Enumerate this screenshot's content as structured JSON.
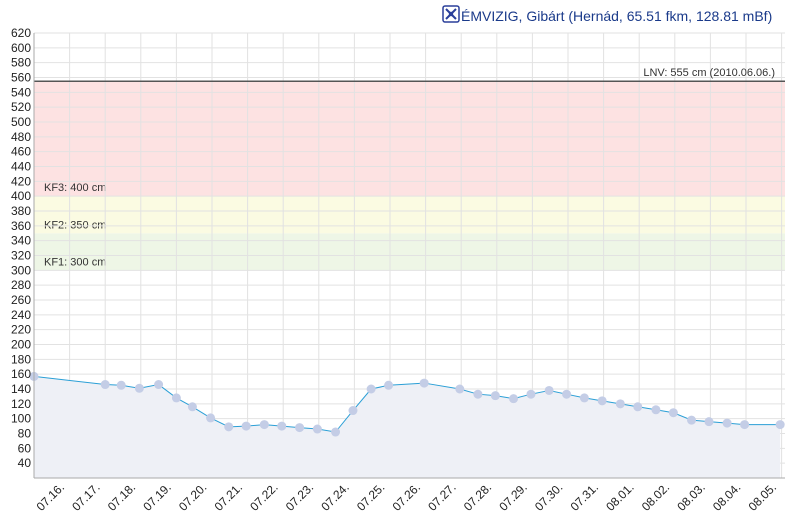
{
  "chart_data": {
    "type": "line",
    "title": "ÉMVIZIG, Gibárt (Hernád, 65.51 fkm, 128.81 mBf)",
    "title_icon": "station-logo-icon",
    "ylim": [
      20,
      620
    ],
    "y_ticks": [
      40,
      60,
      80,
      100,
      120,
      140,
      160,
      180,
      200,
      220,
      240,
      260,
      280,
      300,
      320,
      340,
      360,
      380,
      400,
      420,
      440,
      460,
      480,
      500,
      520,
      540,
      560,
      580,
      600,
      620
    ],
    "x_start_label": "07.16.",
    "x_tick_labels": [
      "07.16.",
      "07.17.",
      "07.18.",
      "07.19.",
      "07.20.",
      "07.21.",
      "07.22.",
      "07.23.",
      "07.24.",
      "07.25.",
      "07.26.",
      "07.27.",
      "07.28.",
      "07.29.",
      "07.30.",
      "07.31.",
      "08.01.",
      "08.02.",
      "08.03.",
      "08.04.",
      "08.05."
    ],
    "grid": true,
    "bands": [
      {
        "label": "KF1: 300 cm",
        "from": 300,
        "to": 350,
        "color": "#eef6e6"
      },
      {
        "label": "KF2: 350 cm",
        "from": 350,
        "to": 400,
        "color": "#fbfbe2"
      },
      {
        "label": "KF3: 400 cm",
        "from": 400,
        "to": 555,
        "color": "#fde2e2"
      }
    ],
    "reference_line": {
      "label": "LNV: 555 cm (2010.06.06.)",
      "value": 555,
      "color": "#555555"
    },
    "series": [
      {
        "color": "#2a9fd6",
        "fill": "#eef0f6",
        "marker_color": "#c4cde6",
        "points": [
          [
            "07.16.",
            157
          ],
          [
            "07.18.",
            146
          ],
          [
            "07.18.",
            145
          ],
          [
            "07.19.",
            141
          ],
          [
            "07.19.",
            146
          ],
          [
            "07.20.",
            128
          ],
          [
            "07.20.",
            116
          ],
          [
            "07.21.",
            101
          ],
          [
            "07.21.",
            89
          ],
          [
            "07.22.",
            90
          ],
          [
            "07.22.",
            92
          ],
          [
            "07.23.",
            90
          ],
          [
            "07.23.",
            88
          ],
          [
            "07.24.",
            86
          ],
          [
            "07.24.",
            82
          ],
          [
            "07.25.",
            111
          ],
          [
            "07.25.",
            140
          ],
          [
            "07.25.",
            145
          ],
          [
            "07.26.",
            148
          ],
          [
            "07.27.",
            140
          ],
          [
            "07.28.",
            133
          ],
          [
            "07.28.",
            131
          ],
          [
            "07.29.",
            127
          ],
          [
            "07.29.",
            133
          ],
          [
            "07.30.",
            138
          ],
          [
            "07.31.",
            133
          ],
          [
            "07.31.",
            128
          ],
          [
            "08.01.",
            124
          ],
          [
            "08.01.",
            120
          ],
          [
            "08.02.",
            116
          ],
          [
            "08.02.",
            112
          ],
          [
            "08.03.",
            108
          ],
          [
            "08.03.",
            98
          ],
          [
            "08.04.",
            96
          ],
          [
            "08.04.",
            94
          ],
          [
            "08.05.",
            92
          ],
          [
            "08.06.",
            92
          ]
        ],
        "point_offsets_days": [
          0,
          2,
          2.45,
          2.96,
          3.5,
          4.0,
          4.45,
          4.96,
          5.47,
          5.96,
          6.47,
          6.96,
          7.46,
          7.96,
          8.47,
          8.96,
          9.47,
          9.96,
          10.96,
          11.96,
          12.47,
          12.96,
          13.47,
          13.96,
          14.47,
          14.96,
          15.46,
          15.96,
          16.47,
          16.96,
          17.47,
          17.96,
          18.47,
          18.96,
          19.47,
          19.96,
          20.96
        ]
      }
    ]
  }
}
